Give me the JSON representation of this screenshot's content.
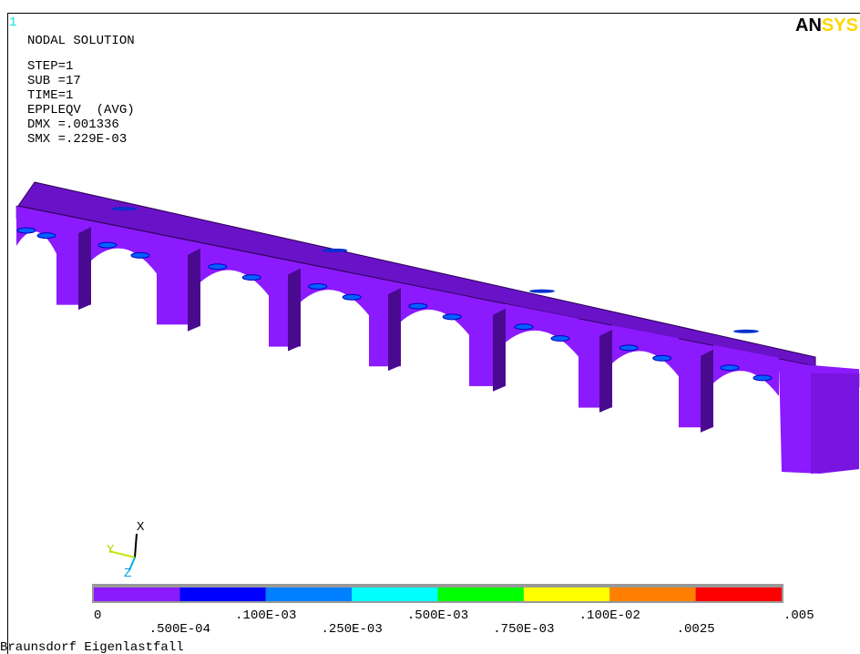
{
  "viewport": {
    "number": "1",
    "logo": {
      "black": "AN",
      "yellow": "SYS"
    }
  },
  "info": {
    "title": "NODAL SOLUTION",
    "lines": [
      "STEP=1",
      "SUB =17",
      "TIME=1",
      "EPPLEQV  (AVG)",
      "DMX =.001336",
      "SMX =.229E-03"
    ]
  },
  "triad": {
    "x": "X",
    "y": "Y",
    "z": "Z"
  },
  "legend": {
    "colors": [
      "#8c1aff",
      "#0000ff",
      "#0080ff",
      "#00ffff",
      "#00ff00",
      "#ffff00",
      "#ff8000",
      "#ff0000"
    ],
    "labels": [
      "0",
      ".500E-04",
      ".100E-03",
      ".250E-03",
      ".500E-03",
      ".750E-03",
      ".100E-02",
      ".0025",
      ".005"
    ]
  },
  "footer": "Braunsdorf Eigenlastfall"
}
